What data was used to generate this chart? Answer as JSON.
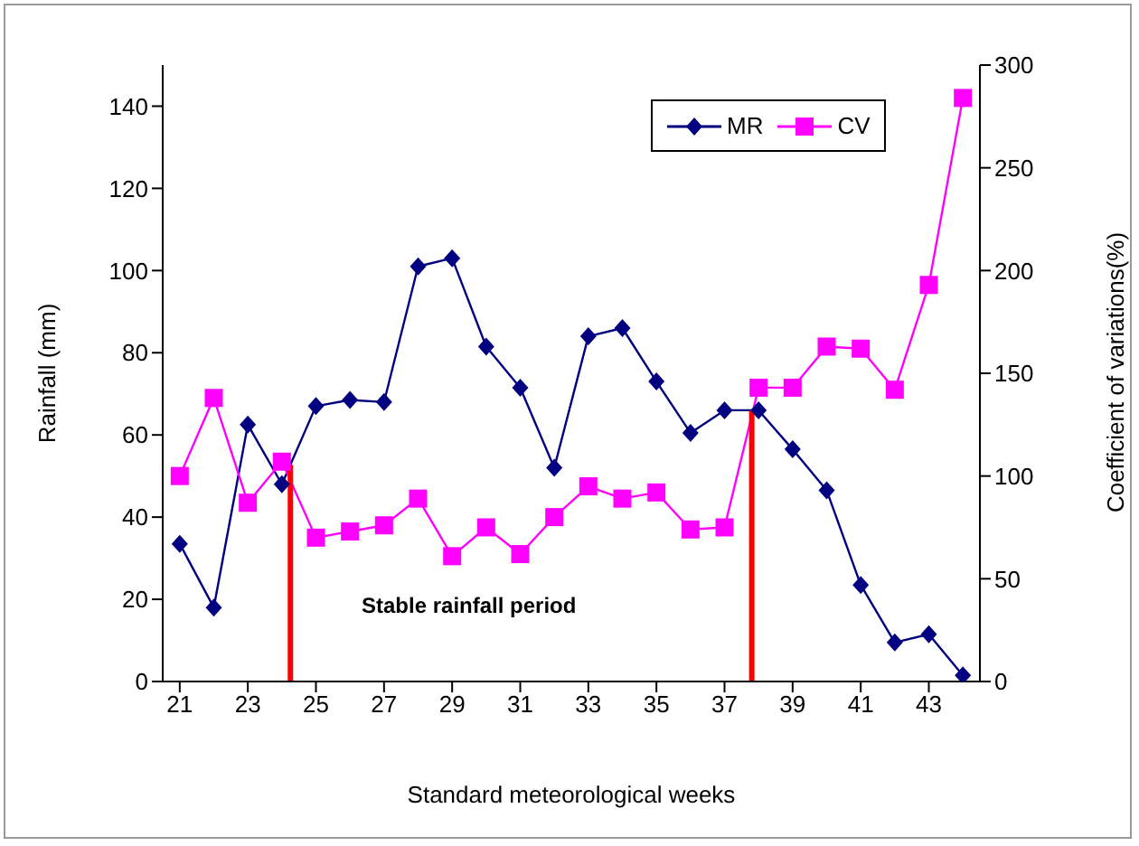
{
  "chart_data": {
    "type": "line",
    "xlabel": "Standard meteorological weeks",
    "ylabel": "Rainfall (mm)",
    "y2label": "Coefficient of variations(%)",
    "x": [
      21,
      22,
      23,
      24,
      25,
      26,
      27,
      28,
      29,
      30,
      31,
      32,
      33,
      34,
      35,
      36,
      37,
      38,
      39,
      40,
      41,
      42,
      43,
      44
    ],
    "xlim": [
      20.5,
      44.5
    ],
    "xticks": [
      21,
      23,
      25,
      27,
      29,
      31,
      33,
      35,
      37,
      39,
      41,
      43
    ],
    "ylim": [
      0,
      150
    ],
    "yticks": [
      0,
      20,
      40,
      60,
      80,
      100,
      120,
      140
    ],
    "y2lim": [
      0,
      300
    ],
    "y2ticks": [
      0,
      50,
      100,
      150,
      200,
      250,
      300
    ],
    "series": [
      {
        "name": "MR",
        "color": "#000080",
        "marker": "diamond",
        "values": [
          33.5,
          18,
          62.5,
          48,
          67,
          68.5,
          68,
          101,
          103,
          81.5,
          71.5,
          52,
          84,
          86,
          73,
          60.5,
          66,
          66,
          56.5,
          46.5,
          23.5,
          9.5,
          11.5,
          1.5
        ]
      },
      {
        "name": "CV",
        "color": "#ff00ff",
        "marker": "square",
        "axis": "y2",
        "values": [
          100,
          138,
          87,
          107,
          70,
          73,
          76,
          89,
          61,
          75,
          62,
          80,
          95,
          89,
          92,
          74,
          75,
          143,
          143,
          163,
          162,
          142,
          193,
          284
        ]
      }
    ],
    "ref_lines": [
      {
        "axis": "x",
        "value": 24.25,
        "color": "#ff0000"
      },
      {
        "axis": "x",
        "value": 37.8,
        "color": "#ff0000"
      }
    ],
    "annotations": [
      "Stable rainfall period"
    ],
    "legend": "top right",
    "grid": false
  }
}
